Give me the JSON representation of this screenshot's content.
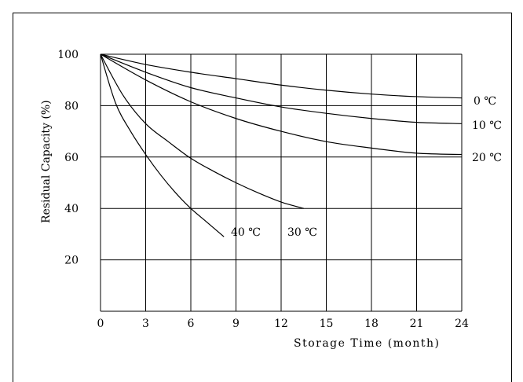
{
  "chart_data": {
    "type": "line",
    "xlabel": "Storage Time (month)",
    "ylabel": "Residual Capacity (%)",
    "xlim": [
      0,
      24
    ],
    "ylim": [
      0,
      100
    ],
    "xticks": [
      "0",
      "3",
      "6",
      "9",
      "12",
      "15",
      "18",
      "21",
      "24"
    ],
    "yticks": [
      "20",
      "40",
      "60",
      "80",
      "100"
    ],
    "grid": true,
    "series": [
      {
        "name": "0 ℃",
        "x": [
          0,
          3,
          6,
          9,
          12,
          15,
          18,
          21,
          24
        ],
        "y": [
          100,
          96,
          93,
          90.5,
          88,
          86,
          84.5,
          83.5,
          83
        ]
      },
      {
        "name": "10 ℃",
        "x": [
          0,
          3,
          6,
          9,
          12,
          15,
          18,
          21,
          24
        ],
        "y": [
          100,
          93,
          87,
          83,
          79.5,
          77,
          75,
          73.5,
          73
        ]
      },
      {
        "name": "20 ℃",
        "x": [
          0,
          3,
          6,
          9,
          12,
          15,
          18,
          21,
          24
        ],
        "y": [
          100,
          90,
          81.5,
          75,
          70,
          66,
          63.5,
          61.5,
          61
        ]
      },
      {
        "name": "30 ℃",
        "x": [
          0,
          1.5,
          3,
          4.5,
          6,
          7.5,
          9,
          10.5,
          12,
          13.5
        ],
        "y": [
          100,
          84,
          73,
          66,
          59.5,
          54.5,
          50,
          46,
          42.5,
          40
        ]
      },
      {
        "name": "40 ℃",
        "x": [
          0,
          1,
          2,
          3,
          4,
          5,
          6,
          7,
          8.2
        ],
        "y": [
          100,
          81,
          70,
          61,
          53,
          46,
          40,
          35,
          29
        ]
      }
    ]
  }
}
